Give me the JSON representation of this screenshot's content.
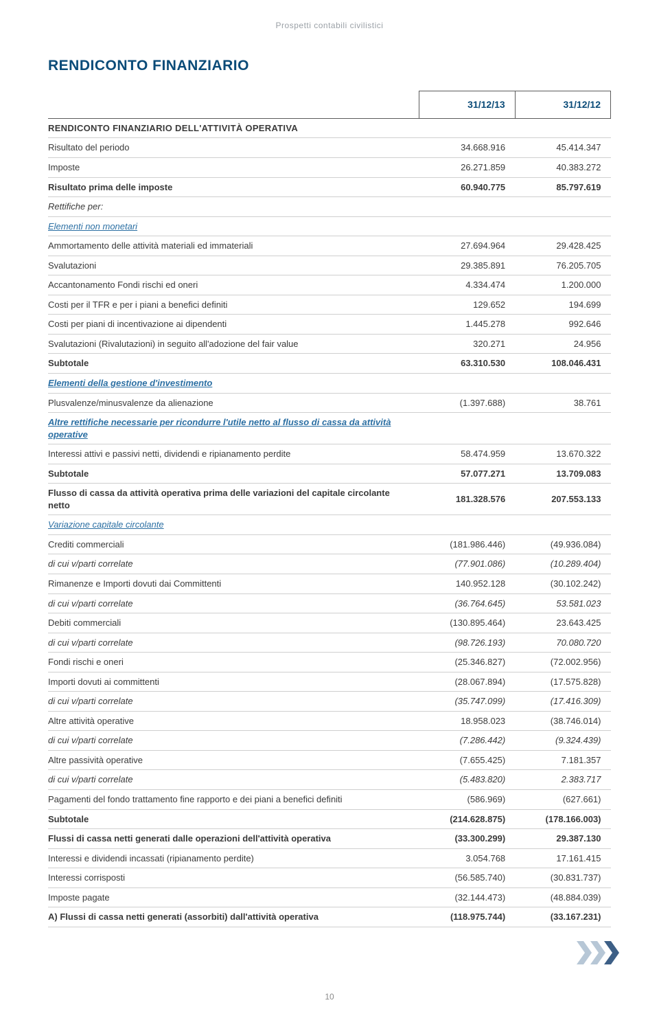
{
  "breadcrumb": "Prospetti contabili civilistici",
  "title": "RENDICONTO FINANZIARIO",
  "page_number": "10",
  "columns": {
    "col1": "31/12/13",
    "col2": "31/12/12"
  },
  "colors": {
    "heading": "#0a4b78",
    "link": "#2b6fa3",
    "text": "#3a3a3a",
    "border": "#cfcfcf",
    "border_dark": "#5a5a5a",
    "chevron_light": "#b7c7d6",
    "chevron_dark": "#3d5f86"
  },
  "rows": [
    {
      "label": "RENDICONTO FINANZIARIO DELL'ATTIVITÀ OPERATIVA",
      "v1": "",
      "v2": "",
      "cls": "caps"
    },
    {
      "label": "Risultato del periodo",
      "v1": "34.668.916",
      "v2": "45.414.347"
    },
    {
      "label": "Imposte",
      "v1": "26.271.859",
      "v2": "40.383.272"
    },
    {
      "label": "Risultato prima delle imposte",
      "v1": "60.940.775",
      "v2": "85.797.619",
      "cls": "bold"
    },
    {
      "label": "Rettifiche per:",
      "v1": "",
      "v2": "",
      "cls": "italic"
    },
    {
      "label": "Elementi non monetari",
      "v1": "",
      "v2": "",
      "cls": "section"
    },
    {
      "label": "Ammortamento delle attività materiali ed immateriali",
      "v1": "27.694.964",
      "v2": "29.428.425"
    },
    {
      "label": "Svalutazioni",
      "v1": "29.385.891",
      "v2": "76.205.705"
    },
    {
      "label": "Accantonamento Fondi rischi ed oneri",
      "v1": "4.334.474",
      "v2": "1.200.000"
    },
    {
      "label": "Costi per il TFR e per i piani a benefici definiti",
      "v1": "129.652",
      "v2": "194.699"
    },
    {
      "label": "Costi per piani di incentivazione ai dipendenti",
      "v1": "1.445.278",
      "v2": "992.646"
    },
    {
      "label": "Svalutazioni (Rivalutazioni) in seguito all'adozione del fair value",
      "v1": "320.271",
      "v2": "24.956"
    },
    {
      "label": "Subtotale",
      "v1": "63.310.530",
      "v2": "108.046.431",
      "cls": "bold"
    },
    {
      "label": "Elementi della gestione d'investimento",
      "v1": "",
      "v2": "",
      "cls": "section-bold"
    },
    {
      "label": "Plusvalenze/minusvalenze da alienazione",
      "v1": "(1.397.688)",
      "v2": "38.761"
    },
    {
      "label": "Altre rettifiche necessarie per ricondurre l'utile netto al flusso di cassa da attività operative",
      "v1": "",
      "v2": "",
      "cls": "section-bold"
    },
    {
      "label": "Interessi attivi e passivi netti, dividendi e ripianamento perdite",
      "v1": "58.474.959",
      "v2": "13.670.322"
    },
    {
      "label": "Subtotale",
      "v1": "57.077.271",
      "v2": "13.709.083",
      "cls": "bold"
    },
    {
      "label": "Flusso di cassa da attività operativa prima delle variazioni del capitale circolante netto",
      "v1": "181.328.576",
      "v2": "207.553.133",
      "cls": "bold"
    },
    {
      "label": "Variazione capitale circolante",
      "v1": "",
      "v2": "",
      "cls": "section"
    },
    {
      "label": "Crediti commerciali",
      "v1": "(181.986.446)",
      "v2": "(49.936.084)"
    },
    {
      "label": "di cui v/parti correlate",
      "v1": "(77.901.086)",
      "v2": "(10.289.404)",
      "cls": "italic"
    },
    {
      "label": "Rimanenze e Importi dovuti dai Committenti",
      "v1": "140.952.128",
      "v2": "(30.102.242)"
    },
    {
      "label": "di cui v/parti correlate",
      "v1": "(36.764.645)",
      "v2": "53.581.023",
      "cls": "italic"
    },
    {
      "label": "Debiti commerciali",
      "v1": "(130.895.464)",
      "v2": "23.643.425"
    },
    {
      "label": "di cui v/parti correlate",
      "v1": "(98.726.193)",
      "v2": "70.080.720",
      "cls": "italic"
    },
    {
      "label": "Fondi rischi e oneri",
      "v1": "(25.346.827)",
      "v2": "(72.002.956)"
    },
    {
      "label": "Importi dovuti ai committenti",
      "v1": "(28.067.894)",
      "v2": "(17.575.828)"
    },
    {
      "label": "di cui v/parti correlate",
      "v1": "(35.747.099)",
      "v2": "(17.416.309)",
      "cls": "italic"
    },
    {
      "label": "Altre attività operative",
      "v1": "18.958.023",
      "v2": "(38.746.014)"
    },
    {
      "label": "di cui v/parti correlate",
      "v1": "(7.286.442)",
      "v2": "(9.324.439)",
      "cls": "italic"
    },
    {
      "label": "Altre passività operative",
      "v1": "(7.655.425)",
      "v2": "7.181.357"
    },
    {
      "label": "di cui v/parti correlate",
      "v1": "(5.483.820)",
      "v2": "2.383.717",
      "cls": "italic"
    },
    {
      "label": "Pagamenti del fondo trattamento fine rapporto e dei piani a benefici definiti",
      "v1": "(586.969)",
      "v2": "(627.661)"
    },
    {
      "label": "Subtotale",
      "v1": "(214.628.875)",
      "v2": "(178.166.003)",
      "cls": "bold"
    },
    {
      "label": "Flussi di cassa netti generati dalle operazioni dell'attività operativa",
      "v1": "(33.300.299)",
      "v2": "29.387.130",
      "cls": "bold"
    },
    {
      "label": "Interessi e dividendi incassati (ripianamento perdite)",
      "v1": "3.054.768",
      "v2": "17.161.415"
    },
    {
      "label": "Interessi corrisposti",
      "v1": "(56.585.740)",
      "v2": "(30.831.737)"
    },
    {
      "label": "Imposte pagate",
      "v1": "(32.144.473)",
      "v2": "(48.884.039)"
    },
    {
      "label": "A) Flussi di cassa netti generati (assorbiti) dall'attività operativa",
      "v1": "(118.975.744)",
      "v2": "(33.167.231)",
      "cls": "bold"
    }
  ]
}
